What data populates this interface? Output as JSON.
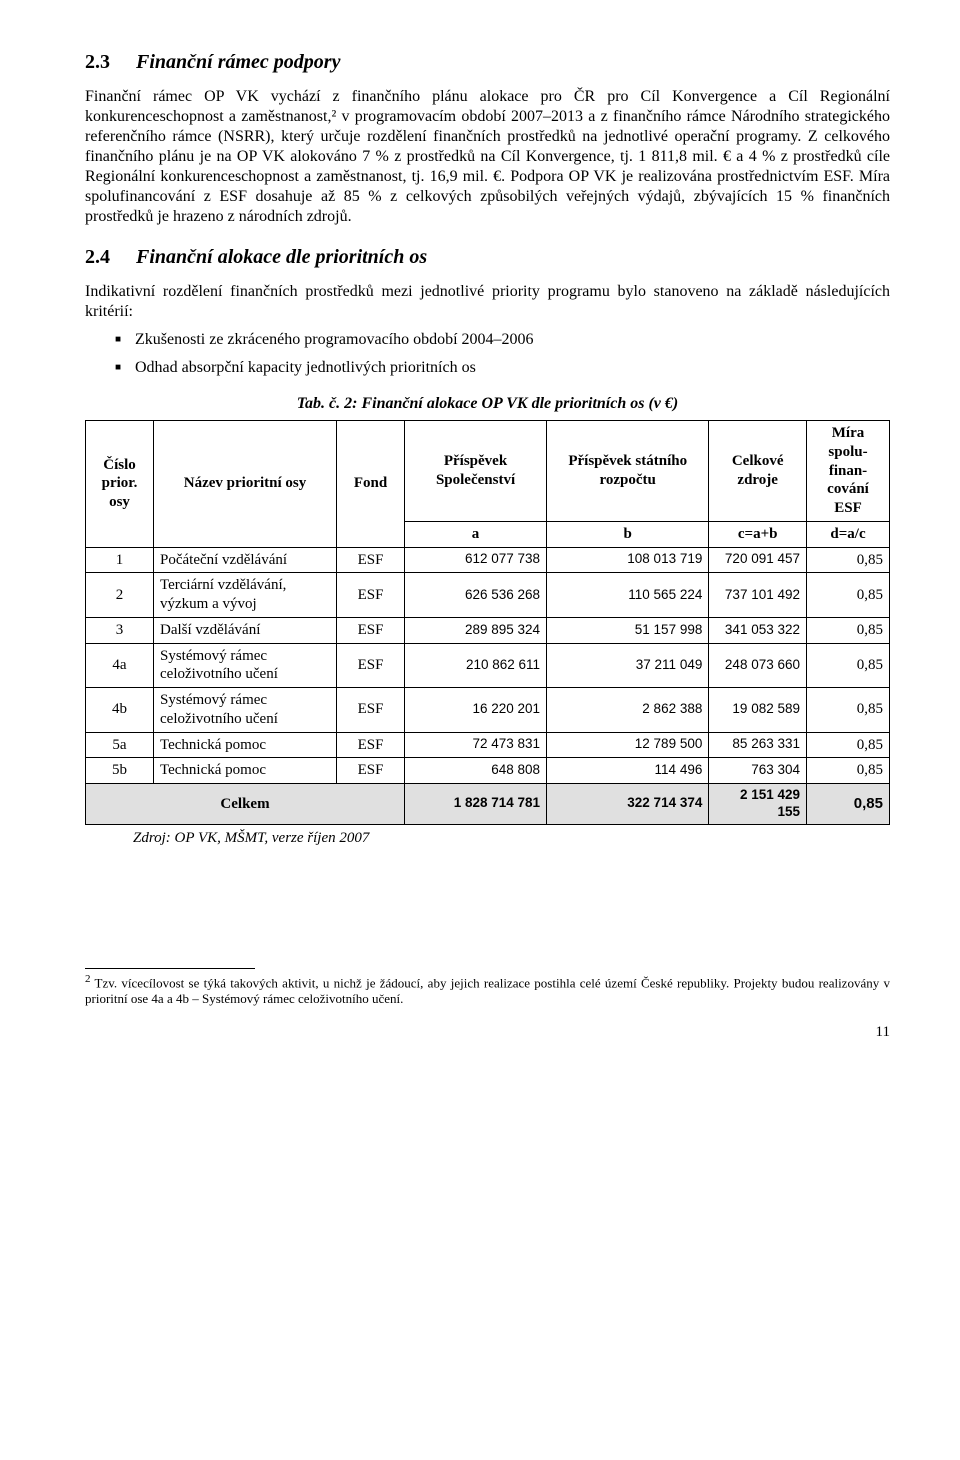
{
  "section23": {
    "num": "2.3",
    "title": "Finanční rámec podpory",
    "para": "Finanční rámec OP VK vychází z finančního plánu alokace pro ČR pro Cíl Konvergence a Cíl Regionální konkurenceschopnost a zaměstnanost,² v programovacím období 2007–2013 a z finančního rámce Národního strategického referenčního rámce (NSRR), který určuje rozdělení finančních prostředků na jednotlivé operační programy. Z celkového finančního plánu je na OP VK alokováno 7 % z prostředků na Cíl Konvergence, tj. 1 811,8 mil. € a 4 % z prostředků cíle Regionální konkurenceschopnost a zaměstnanost, tj. 16,9 mil. €. Podpora OP VK je realizována prostřednictvím ESF. Míra spolufinancování z ESF dosahuje až 85 % z celkových způsobilých veřejných výdajů, zbývajících 15 % finančních prostředků je hrazeno z národních zdrojů."
  },
  "section24": {
    "num": "2.4",
    "title": "Finanční alokace dle prioritních os",
    "intro": "Indikativní rozdělení finančních prostředků mezi jednotlivé priority programu bylo stanoveno na základě následujících kritérií:",
    "bullets": [
      "Zkušenosti ze zkráceného programovacího období 2004–2006",
      "Odhad absorpční kapacity jednotlivých prioritních os"
    ]
  },
  "table": {
    "caption": "Tab. č. 2: Finanční alokace OP VK dle prioritních os (v €)",
    "headers": {
      "col1": "Číslo prior. osy",
      "col2": "Název prioritní osy",
      "col3": "Fond",
      "col4": "Příspěvek Společenství",
      "col5": "Příspěvek státního rozpočtu",
      "col6": "Celkové zdroje",
      "col7": "Míra spolu-finan-cování ESF"
    },
    "sub": {
      "a": "a",
      "b": "b",
      "c": "c=a+b",
      "d": "d=a/c"
    },
    "rows": [
      {
        "id": "1",
        "name": "Počáteční vzdělávání",
        "fund": "ESF",
        "a": "612 077 738",
        "b": "108 013 719",
        "c": "720 091 457",
        "d": "0,85"
      },
      {
        "id": "2",
        "name": "Terciární vzdělávání, výzkum a vývoj",
        "fund": "ESF",
        "a": "626 536 268",
        "b": "110 565 224",
        "c": "737 101 492",
        "d": "0,85"
      },
      {
        "id": "3",
        "name": "Další vzdělávání",
        "fund": "ESF",
        "a": "289 895 324",
        "b": "51 157 998",
        "c": "341 053 322",
        "d": "0,85"
      },
      {
        "id": "4a",
        "name": "Systémový rámec celoživotního učení",
        "fund": "ESF",
        "a": "210 862 611",
        "b": "37 211 049",
        "c": "248 073 660",
        "d": "0,85"
      },
      {
        "id": "4b",
        "name": "Systémový rámec celoživotního učení",
        "fund": "ESF",
        "a": "16 220 201",
        "b": "2 862 388",
        "c": "19 082 589",
        "d": "0,85"
      },
      {
        "id": "5a",
        "name": "Technická pomoc",
        "fund": "ESF",
        "a": "72 473 831",
        "b": "12 789 500",
        "c": "85 263 331",
        "d": "0,85"
      },
      {
        "id": "5b",
        "name": "Technická pomoc",
        "fund": "ESF",
        "a": "648 808",
        "b": "114 496",
        "c": "763 304",
        "d": "0,85"
      }
    ],
    "total": {
      "label": "Celkem",
      "a": "1 828 714 781",
      "b": "322 714 374",
      "c": "2 151 429 155",
      "d": "0,85"
    },
    "source": "Zdroj: OP VK, MŠMT, verze říjen 2007"
  },
  "footnote": {
    "marker": "2",
    "text": " Tzv. vícecílovost se týká takových aktivit, u nichž je žádoucí, aby jejich realizace postihla celé území České republiky. Projekty budou realizovány v prioritní ose 4a a 4b – Systémový rámec celoživotního učení."
  },
  "page": "11"
}
